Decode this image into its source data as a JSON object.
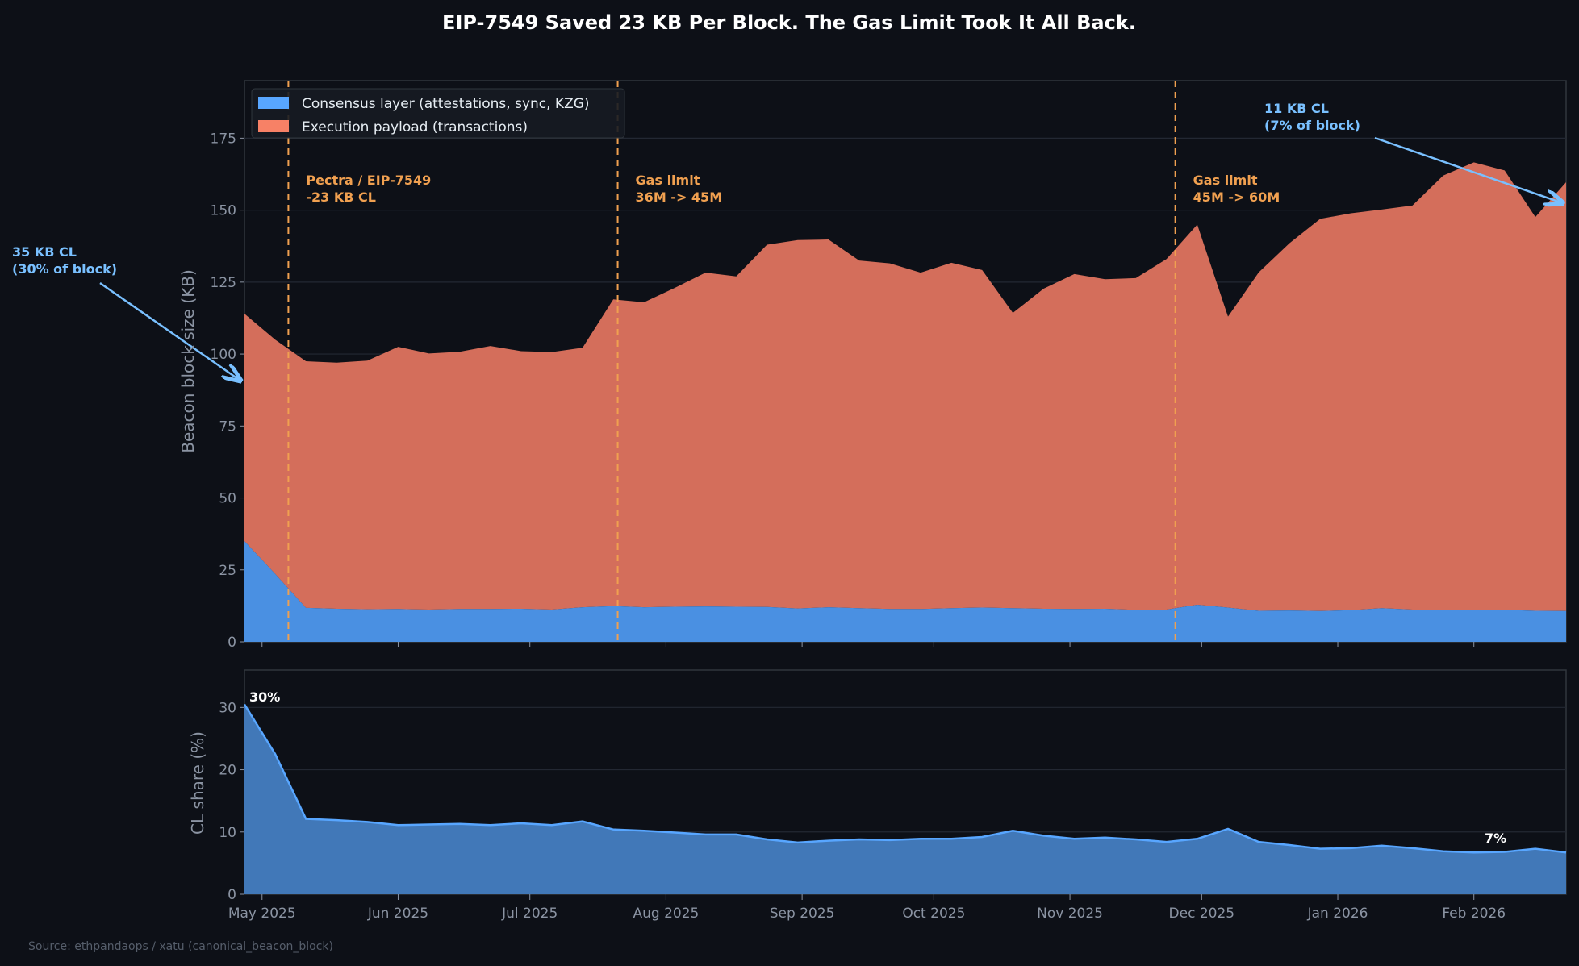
{
  "chart_data": [
    {
      "type": "area",
      "stacked": true,
      "title": "EIP-7549 Saved 23 KB Per Block. The Gas Limit Took It All Back.",
      "ylabel": "Beacon block size (KB)",
      "xlabel": "",
      "ylim": [
        0,
        195
      ],
      "yticks": [
        0,
        25,
        50,
        75,
        100,
        125,
        150,
        175
      ],
      "grid": true,
      "legend_position": "top-left",
      "x_start": "2025-04-27",
      "x_step_days": 7,
      "series": [
        {
          "name": "Consensus layer (attestations, sync, KZG)",
          "color": "#4a90e2",
          "legend_color": "#58a6ff",
          "values": [
            35,
            23.6,
            11.8,
            11.5,
            11.3,
            11.4,
            11.2,
            11.4,
            11.4,
            11.5,
            11.2,
            12.0,
            12.4,
            12.0,
            12.2,
            12.3,
            12.2,
            12.1,
            11.6,
            12.0,
            11.7,
            11.4,
            11.4,
            11.7,
            11.9,
            11.7,
            11.5,
            11.4,
            11.5,
            11.1,
            11.2,
            12.9,
            11.9,
            10.8,
            10.9,
            10.7,
            11.0,
            11.7,
            11.2,
            11.2,
            11.2,
            11.1,
            10.8,
            10.7
          ]
        },
        {
          "name": "Execution payload (transactions)",
          "color": "#d46e5b",
          "legend_color": "#f78166",
          "totals": [
            114,
            105,
            97.5,
            97,
            97.7,
            102.5,
            100.2,
            100.8,
            102.8,
            101,
            100.7,
            102.2,
            119,
            118,
            123,
            128.3,
            127,
            138,
            139.6,
            139.8,
            132.5,
            131.5,
            128.3,
            131.7,
            129.2,
            114.3,
            122.7,
            127.8,
            126,
            126.4,
            133,
            145,
            113,
            128.4,
            138.5,
            147,
            148.9,
            150.2,
            151.6,
            162,
            166.6,
            163.8,
            147.6,
            159.7
          ]
        }
      ],
      "events": [
        {
          "date": "2025-05-07",
          "label_line1": "Pectra / EIP-7549",
          "label_line2": "-23 KB CL"
        },
        {
          "date": "2025-07-21",
          "label_line1": "Gas limit",
          "label_line2": "36M -> 45M"
        },
        {
          "date": "2025-11-25",
          "label_line1": "Gas limit",
          "label_line2": "45M -> 60M"
        }
      ],
      "annotations": [
        {
          "line1": "35 KB CL",
          "line2": "(30% of block)"
        },
        {
          "line1": "11 KB CL",
          "line2": "(7% of block)"
        }
      ],
      "event_color": "#f0a050",
      "annotation_color": "#79c0ff"
    },
    {
      "type": "area",
      "ylabel": "CL share (%)",
      "ylim": [
        0,
        36
      ],
      "yticks": [
        0,
        10,
        20,
        30
      ],
      "grid": true,
      "xticks": [
        "May 2025",
        "Jun 2025",
        "Jul 2025",
        "Aug 2025",
        "Sep 2025",
        "Oct 2025",
        "Nov 2025",
        "Dec 2025",
        "Jan 2026",
        "Feb 2026"
      ],
      "xtick_dates": [
        "2025-05-01",
        "2025-06-01",
        "2025-07-01",
        "2025-08-01",
        "2025-09-01",
        "2025-10-01",
        "2025-11-01",
        "2025-12-01",
        "2026-01-01",
        "2026-02-01"
      ],
      "series": [
        {
          "values": [
            30.5,
            22.5,
            12.1,
            11.9,
            11.6,
            11.1,
            11.2,
            11.3,
            11.1,
            11.4,
            11.1,
            11.7,
            10.4,
            10.2,
            9.9,
            9.6,
            9.6,
            8.8,
            8.3,
            8.6,
            8.8,
            8.7,
            8.9,
            8.9,
            9.2,
            10.2,
            9.4,
            8.9,
            9.1,
            8.8,
            8.4,
            8.9,
            10.5,
            8.4,
            7.9,
            7.3,
            7.4,
            7.8,
            7.4,
            6.9,
            6.7,
            6.8,
            7.3,
            6.7
          ],
          "color": "#58a6ff"
        }
      ],
      "labels": {
        "start": "30%",
        "end": "7%"
      }
    }
  ],
  "source": "Source: ethpandaops / xatu (canonical_beacon_block)"
}
